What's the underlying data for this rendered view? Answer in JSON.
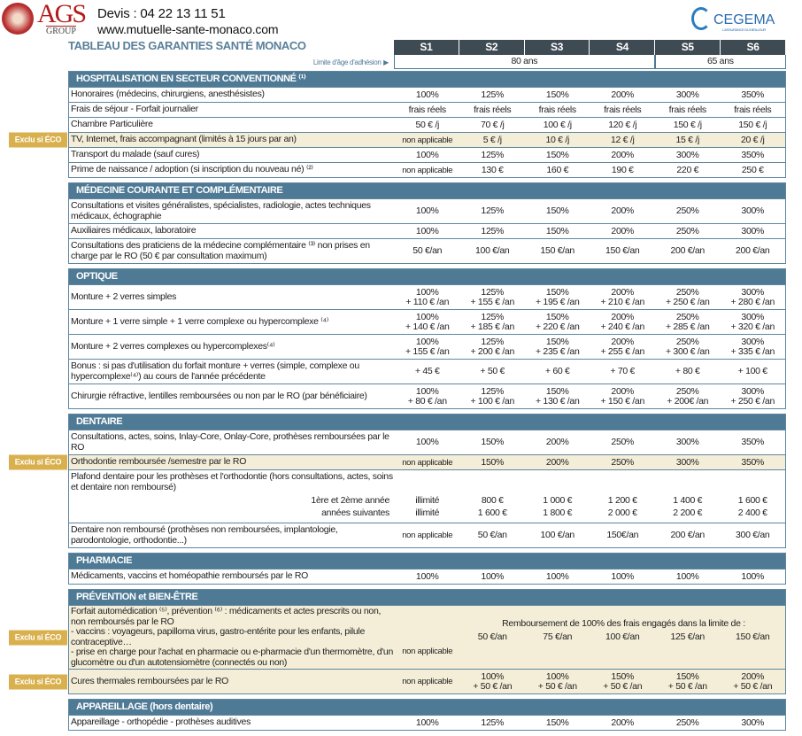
{
  "header": {
    "logo_text": "AGS",
    "logo_sub": "GROUP",
    "phone": "Devis : 04 22 13 11 51",
    "website": "www.mutuelle-sante-monaco.com",
    "partner": "CEGEMA",
    "partner_tagline": "L'ASSURANCE DU MEILLEUR"
  },
  "title": "TABLEAU DES GARANTIES SANTÉ MONACO",
  "columns": [
    "S1",
    "S2",
    "S3",
    "S4",
    "S5",
    "S6"
  ],
  "age_limit": {
    "label": "Limite d'âge d'adhésion",
    "groups": [
      {
        "value": "80 ans",
        "span": 4
      },
      {
        "value": "65 ans",
        "span": 2
      }
    ]
  },
  "exclu_label": "Exclu si ÉCO",
  "sections": [
    {
      "title": "HOSPITALISATION EN SECTEUR CONVENTIONNÉ ⁽¹⁾",
      "rows": [
        {
          "label": "Honoraires (médecins, chirurgiens, anesthésistes)",
          "values": [
            "100%",
            "125%",
            "150%",
            "200%",
            "300%",
            "350%"
          ]
        },
        {
          "label": "Frais de séjour - Forfait journalier",
          "values": [
            "frais réels",
            "frais réels",
            "frais réels",
            "frais réels",
            "frais réels",
            "frais réels"
          ]
        },
        {
          "label": "Chambre Particulière",
          "values": [
            "50 € /j",
            "70 € /j",
            "100 € /j",
            "120 € /j",
            "150 € /j",
            "150 € /j"
          ]
        },
        {
          "label": "TV, Internet, frais accompagnant (limités à 15 jours par an)",
          "exclu": true,
          "values": [
            "non applicable",
            "5 € /j",
            "10 € /j",
            "12 € /j",
            "15 € /j",
            "20 € /j"
          ]
        },
        {
          "label": "Transport du malade (sauf cures)",
          "values": [
            "100%",
            "125%",
            "150%",
            "200%",
            "300%",
            "350%"
          ]
        },
        {
          "label": "Prime de naissance / adoption (si inscription du nouveau né) ⁽²⁾",
          "values": [
            "non applicable",
            "130 €",
            "160 €",
            "190 €",
            "220 €",
            "250 €"
          ]
        }
      ]
    },
    {
      "title": "MÉDECINE COURANTE ET COMPLÉMENTAIRE",
      "rows": [
        {
          "label": "Consultations et visites généralistes, spécialistes, radiologie, actes techniques médicaux, échographie",
          "values": [
            "100%",
            "125%",
            "150%",
            "200%",
            "250%",
            "300%"
          ]
        },
        {
          "label": "Auxiliaires médicaux, laboratoire",
          "values": [
            "100%",
            "125%",
            "150%",
            "200%",
            "250%",
            "300%"
          ]
        },
        {
          "label": "Consultations des praticiens de la médecine complémentaire ⁽³⁾ non prises en charge par le RO (50 € par consultation maximum)",
          "values": [
            "50 €/an",
            "100 €/an",
            "150 €/an",
            "150 €/an",
            "200 €/an",
            "200 €/an"
          ]
        }
      ]
    },
    {
      "title": "OPTIQUE",
      "rows": [
        {
          "label": "Monture + 2 verres simples",
          "values": [
            [
              "100%",
              "+ 110 € /an"
            ],
            [
              "125%",
              "+ 155 € /an"
            ],
            [
              "150%",
              "+ 195 € /an"
            ],
            [
              "200%",
              "+ 210 € /an"
            ],
            [
              "250%",
              "+ 250 € /an"
            ],
            [
              "300%",
              "+ 280 € /an"
            ]
          ]
        },
        {
          "label": "Monture + 1 verre simple + 1 verre complexe ou hypercomplexe ⁽⁴⁾",
          "values": [
            [
              "100%",
              "+ 140 € /an"
            ],
            [
              "125%",
              "+ 185 € /an"
            ],
            [
              "150%",
              "+ 220 € /an"
            ],
            [
              "200%",
              "+ 240 € /an"
            ],
            [
              "250%",
              "+ 285 € /an"
            ],
            [
              "300%",
              "+ 320 € /an"
            ]
          ]
        },
        {
          "label": "Monture + 2 verres complexes ou hypercomplexes⁽⁴⁾",
          "values": [
            [
              "100%",
              "+ 155 € /an"
            ],
            [
              "125%",
              "+ 200 € /an"
            ],
            [
              "150%",
              "+ 235 € /an"
            ],
            [
              "200%",
              "+ 255 € /an"
            ],
            [
              "250%",
              "+ 300 € /an"
            ],
            [
              "300%",
              "+ 335 € /an"
            ]
          ]
        },
        {
          "label": "Bonus : si pas d'utilisation du forfait monture + verres (simple, complexe ou hypercomplexe⁽⁴⁾) au cours de l'année précédente",
          "values": [
            "+ 45 €",
            "+ 50 €",
            "+ 60 €",
            "+ 70 €",
            "+ 80 €",
            "+ 100 €"
          ]
        },
        {
          "label": "Chirurgie réfractive, lentilles remboursées ou non par le RO (par bénéficiaire)",
          "values": [
            [
              "100%",
              "+ 80 € /an"
            ],
            [
              "125%",
              "+ 100 € /an"
            ],
            [
              "150%",
              "+ 130 € /an"
            ],
            [
              "200%",
              "+ 150 € /an"
            ],
            [
              "250%",
              "+ 200€ /an"
            ],
            [
              "300%",
              "+ 250 € /an"
            ]
          ]
        }
      ]
    },
    {
      "title": "DENTAIRE",
      "rows": [
        {
          "label": "Consultations, actes, soins, Inlay-Core, Onlay-Core, prothèses remboursées par le RO",
          "values": [
            "100%",
            "150%",
            "200%",
            "250%",
            "300%",
            "350%"
          ]
        },
        {
          "label": "Orthodontie remboursée /semestre par le RO",
          "exclu": true,
          "values": [
            "non applicable",
            "150%",
            "200%",
            "250%",
            "300%",
            "350%"
          ]
        },
        {
          "label": "Plafond dentaire pour les prothèses et l'orthodontie (hors consultations, actes, soins et dentaire non remboursé)",
          "subrows": [
            {
              "label": "1ère et 2ème année",
              "values": [
                "illimité",
                "800 €",
                "1 000 €",
                "1 200 €",
                "1 400 €",
                "1 600 €"
              ]
            },
            {
              "label": "années suivantes",
              "values": [
                "illimité",
                "1 600 €",
                "1 800 €",
                "2 000 €",
                "2 200 €",
                "2 400 €"
              ]
            }
          ]
        },
        {
          "label": "Dentaire non remboursé (prothèses non remboursées, implantologie, parodontologie, orthodontie...)",
          "values": [
            "non applicable",
            "50 €/an",
            "100 €/an",
            "150€/an",
            "200 €/an",
            "300 €/an"
          ]
        }
      ]
    },
    {
      "title": "PHARMACIE",
      "rows": [
        {
          "label": "Médicaments, vaccins et homéopathie remboursés par le RO",
          "values": [
            "100%",
            "100%",
            "100%",
            "100%",
            "100%",
            "100%"
          ]
        }
      ]
    },
    {
      "title": "PRÉVENTION et BIEN-ÊTRE",
      "rows": [
        {
          "label": "Forfait automédication ⁽⁵⁾, prévention ⁽⁶⁾ : médicaments et actes prescrits ou non, non remboursés par le RO\n- vaccins : voyageurs, papilloma virus, gastro-entérite pour les enfants, pilule contraceptive…\n- prise en charge pour l'achat en pharmacie ou e-pharmacie d'un thermomètre, d'un glucomètre ou d'un autotensiomètre (connectés ou non)",
          "exclu": true,
          "note": "Remboursement de 100% des frais engagés dans la limite de :",
          "values": [
            "non applicable",
            "50 €/an",
            "75 €/an",
            "100 €/an",
            "125 €/an",
            "150 €/an"
          ]
        },
        {
          "label": "Cures thermales remboursées par le RO",
          "exclu": true,
          "values": [
            "non applicable",
            [
              "100%",
              "+ 50 € /an"
            ],
            [
              "100%",
              "+ 50 € /an"
            ],
            [
              "150%",
              "+ 50 € /an"
            ],
            [
              "150%",
              "+ 50 € /an"
            ],
            [
              "200%",
              "+ 50 € /an"
            ]
          ]
        }
      ]
    },
    {
      "title": "APPAREILLAGE (hors dentaire)",
      "rows": [
        {
          "label": "Appareillage - orthopédie - prothèses auditives",
          "values": [
            "100%",
            "125%",
            "150%",
            "200%",
            "250%",
            "300%"
          ]
        }
      ]
    }
  ]
}
